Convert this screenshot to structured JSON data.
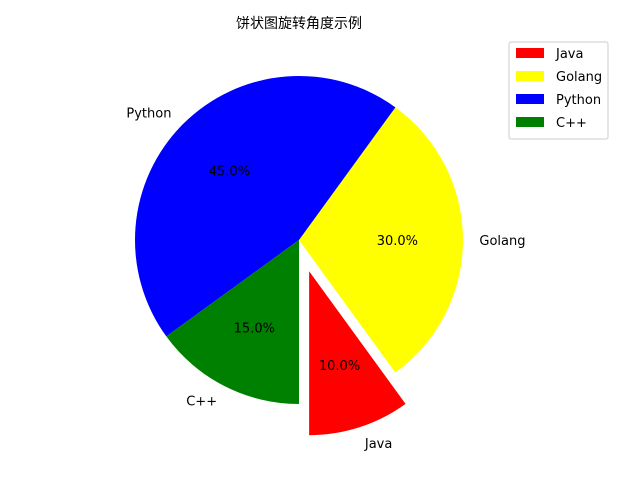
{
  "chart_data": {
    "type": "pie",
    "title": "饼状图旋转角度示例",
    "categories": [
      "Java",
      "Golang",
      "Python",
      "C++"
    ],
    "values": [
      10.0,
      30.0,
      45.0,
      15.0
    ],
    "colors": [
      "#ff0000",
      "#ffff00",
      "#0000ff",
      "#008000"
    ],
    "percent_labels": [
      "10.0%",
      "30.0%",
      "45.0%",
      "15.0%"
    ],
    "start_angle_deg": 270,
    "explode": [
      0.2,
      0,
      0,
      0
    ],
    "legend_position": "top-right",
    "legend_entries": [
      "Java",
      "Golang",
      "Python",
      "C++"
    ]
  }
}
